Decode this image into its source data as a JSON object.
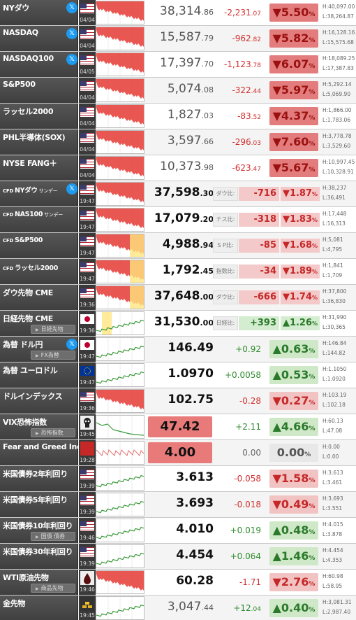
{
  "colors": {
    "down": "#d32f2f",
    "up": "#2e8b2e",
    "header_bg": "#4a4a4a",
    "up_box": "#cfe8c7",
    "down_box": "#f1c3c3"
  },
  "rows": [
    {
      "name": "NYダウ",
      "x": true,
      "flag": "us",
      "date": "04/04",
      "spark": "down",
      "value": "38,314",
      "value_dec": ".86",
      "change": "-2,231",
      "change_dec": ".07",
      "dir": "down",
      "pct": "▼5.50",
      "pct_unit": "%",
      "high": "H:40,097.00",
      "low": "L:38,264.87"
    },
    {
      "name": "NASDAQ",
      "x": true,
      "flag": "us",
      "date": "04/04",
      "spark": "down",
      "value": "15,587",
      "value_dec": ".79",
      "change": "-962",
      "change_dec": ".82",
      "dir": "down",
      "pct": "▼5.82",
      "pct_unit": "%",
      "high": "H:16,128.16",
      "low": "L:15,575.68"
    },
    {
      "name": "NASDAQ100",
      "x": true,
      "flag": "us",
      "date": "04/05",
      "spark": "down",
      "value": "17,397",
      "value_dec": ".70",
      "change": "-1,123",
      "change_dec": ".78",
      "dir": "down",
      "pct": "▼6.07",
      "pct_unit": "%",
      "high": "H:18,089.25",
      "low": "L:17,387.83"
    },
    {
      "name": "S&P500",
      "x": false,
      "flag": "us",
      "date": "04/04",
      "spark": "down",
      "value": "5,074",
      "value_dec": ".08",
      "change": "-322",
      "change_dec": ".44",
      "dir": "down",
      "pct": "▼5.97",
      "pct_unit": "%",
      "high": "H:5,292.14",
      "low": "L:5,069.90"
    },
    {
      "name": "ラッセル2000",
      "x": false,
      "flag": "us",
      "date": "04/04",
      "spark": "down",
      "value": "1,827",
      "value_dec": ".03",
      "change": "-83",
      "change_dec": ".52",
      "dir": "down",
      "pct": "▼4.37",
      "pct_unit": "%",
      "high": "H:1,866.00",
      "low": "L:1,783.06"
    },
    {
      "name": "PHL半導体(SOX)",
      "x": false,
      "flag": "us",
      "date": "04/04",
      "spark": "down",
      "value": "3,597",
      "value_dec": ".66",
      "change": "-296",
      "change_dec": ".03",
      "dir": "down",
      "pct": "▼7.60",
      "pct_unit": "%",
      "high": "H:3,778.78",
      "low": "L:3,529.60"
    },
    {
      "name": "NYSE FANG＋",
      "x": false,
      "flag": "us",
      "date": "04/04",
      "spark": "down",
      "value": "10,373",
      "value_dec": ".98",
      "change": "-623",
      "change_dec": ".47",
      "dir": "down",
      "pct": "▼5.67",
      "pct_unit": "%",
      "high": "H:10,997.45",
      "low": "L:10,328.91"
    },
    {
      "cfd": true,
      "name": "NYダウ",
      "name_suffix": "サンデー",
      "x": true,
      "flag": "us",
      "date": "19:47",
      "spark": "down",
      "value": "37,598",
      "value_dec": ".30",
      "label": "ダウ比:",
      "diff": "-716",
      "dir": "down",
      "pct": "▼1.87",
      "pct_unit": "%",
      "high": "H:38,237",
      "low": "L:36,491"
    },
    {
      "cfd": true,
      "name": "NAS100",
      "name_suffix": "サンデー",
      "x": false,
      "flag": "us",
      "date": "19:47",
      "spark": "down",
      "value": "17,079",
      "value_dec": ".20",
      "label": "ナス比:",
      "diff": "-318",
      "dir": "down",
      "pct": "▼1.83",
      "pct_unit": "%",
      "high": "H:17,448",
      "low": "L:16,313"
    },
    {
      "cfd": true,
      "name": "S&P500",
      "name_suffix": "",
      "x": false,
      "flag": "us",
      "date": "19:47",
      "spark": "down-yellow",
      "value": "4,988",
      "value_dec": ".94",
      "label": "S P比:",
      "diff": "-85",
      "dir": "down",
      "pct": "▼1.68",
      "pct_unit": "%",
      "high": "H:5,081",
      "low": "L:4,795"
    },
    {
      "cfd": true,
      "name": "ラッセル2000",
      "name_suffix": "",
      "x": false,
      "flag": "us",
      "date": "19:47",
      "spark": "down-yellow",
      "value": "1,792",
      "value_dec": ".45",
      "label": "指数比:",
      "diff": "-34",
      "dir": "down",
      "pct": "▼1.89",
      "pct_unit": "%",
      "high": "H:1,841",
      "low": "L:1,709"
    },
    {
      "name": "ダウ先物 CME",
      "x": false,
      "flag": "us",
      "date": "19:36",
      "spark": "down-yellow",
      "value": "37,648",
      "value_dec": ".00",
      "label": "ダウ比:",
      "diff": "-666",
      "dir": "down",
      "pct": "▼1.74",
      "pct_unit": "%",
      "high": "H:37,800",
      "low": "L:36,830"
    },
    {
      "name": "日経先物 CME",
      "sub": "日経先物",
      "x": false,
      "flag": "jp",
      "date": "19:36",
      "spark": "up-yellow",
      "value": "31,530",
      "value_dec": ".00",
      "label": "日経比:",
      "diff": "+393",
      "dir": "up",
      "pct": "▲1.26",
      "pct_unit": "%",
      "high": "H:31,990",
      "low": "L:30,365"
    },
    {
      "name": "為替 ドル円",
      "sub": "FX為替",
      "x": true,
      "flag": "jp",
      "date": "19:47",
      "spark": "up",
      "value": "146.49",
      "value_dec": "",
      "change": "+0.92",
      "change_dec": "",
      "dir": "up",
      "pct": "▲0.63",
      "pct_unit": "%",
      "high": "H:146.84",
      "low": "L:144.82"
    },
    {
      "name": "為替 ユーロドル",
      "x": false,
      "flag": "eu",
      "date": "19:47",
      "spark": "up",
      "value": "1.0970",
      "value_dec": "",
      "change": "+0.0058",
      "change_dec": "",
      "dir": "up",
      "pct": "▲0.53",
      "pct_unit": "%",
      "high": "H:1.1050",
      "low": "L:1.0920"
    },
    {
      "name": "ドルインデックス",
      "x": false,
      "flag": "us",
      "date": "19:36",
      "spark": "down",
      "value": "102.75",
      "value_dec": "",
      "change": "-0.28",
      "change_dec": "",
      "dir": "down",
      "pct": "▼0.27",
      "pct_unit": "%",
      "high": "H:103.19",
      "low": "L:102.18"
    },
    {
      "name": "VIX恐怖指数",
      "sub": "恐怖指数",
      "x": false,
      "flag": "skull",
      "date": "19:45",
      "spark": "vix",
      "value": "47.42",
      "value_dec": "",
      "boxed": true,
      "change": "+2.11",
      "change_dec": "",
      "dir": "up",
      "pct": "▲4.66",
      "pct_unit": "%",
      "high": "H:60.13",
      "low": "L:47.08"
    },
    {
      "name": "Fear and Greed Index",
      "x": false,
      "flag": "fg",
      "date": "19:28",
      "spark": "fg",
      "value": "4.00",
      "value_dec": "",
      "boxed": true,
      "change": "0.00",
      "change_dec": "",
      "dir": "flat",
      "pct": "0.00",
      "pct_unit": "%",
      "high": "H:0.00",
      "low": "L:0.00"
    },
    {
      "name": "米国債券2年利回り",
      "x": false,
      "flag": "us",
      "date": "19:39",
      "spark": "up",
      "value": "3.613",
      "value_dec": "",
      "change": "-0.058",
      "change_dec": "",
      "dir": "down",
      "pct": "▼1.58",
      "pct_unit": "%",
      "high": "H:3.613",
      "low": "L:3.461"
    },
    {
      "name": "米国債券5年利回り",
      "x": false,
      "flag": "us",
      "date": "19:39",
      "spark": "up",
      "value": "3.693",
      "value_dec": "",
      "change": "-0.018",
      "change_dec": "",
      "dir": "down",
      "pct": "▼0.49",
      "pct_unit": "%",
      "high": "H:3.693",
      "low": "L:3.551"
    },
    {
      "name": "米国債券10年利回り",
      "sub": "国債 債券",
      "x": false,
      "flag": "us",
      "date": "19:46",
      "spark": "up",
      "value": "4.010",
      "value_dec": "",
      "change": "+0.019",
      "change_dec": "",
      "dir": "up",
      "pct": "▲0.48",
      "pct_unit": "%",
      "high": "H:4.015",
      "low": "L:3.878"
    },
    {
      "name": "米国債券30年利回り",
      "x": false,
      "flag": "us",
      "date": "19:39",
      "spark": "up",
      "value": "4.454",
      "value_dec": "",
      "change": "+0.064",
      "change_dec": "",
      "dir": "up",
      "pct": "▲1.46",
      "pct_unit": "%",
      "high": "H:4.454",
      "low": "L:4.353"
    },
    {
      "name": "WTI原油先物",
      "sub": "商品先物",
      "x": false,
      "flag": "oil",
      "date": "19:46",
      "spark": "down",
      "value": "60.28",
      "value_dec": "",
      "change": "-1.71",
      "change_dec": "",
      "dir": "down",
      "pct": "▼2.76",
      "pct_unit": "%",
      "high": "H:60.98",
      "low": "L:58.95"
    },
    {
      "name": "金先物",
      "x": false,
      "flag": "gold",
      "date": "19:45",
      "spark": "up",
      "value": "3,047",
      "value_dec": ".44",
      "change": "+12",
      "change_dec": ".04",
      "dir": "up",
      "pct": "▲0.40",
      "pct_unit": "%",
      "high": "H:3,081.31",
      "low": "L:2,987.40"
    }
  ]
}
